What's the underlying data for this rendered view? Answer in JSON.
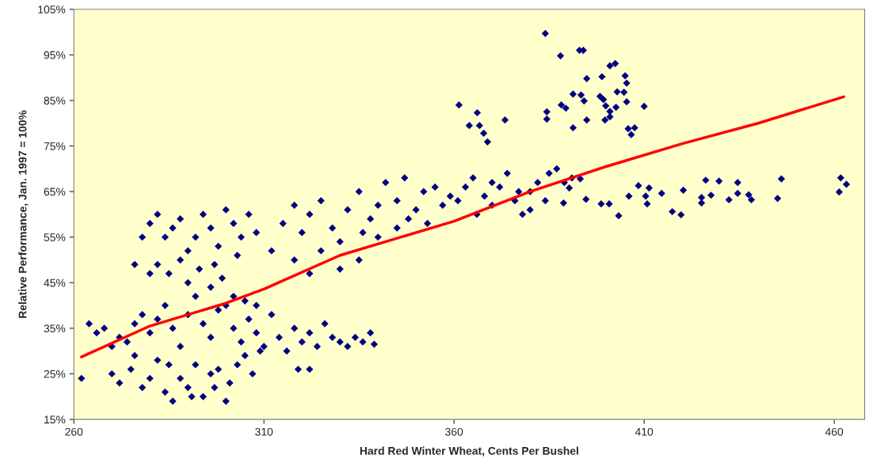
{
  "chart_data": {
    "type": "scatter",
    "xlabel": "Hard Red Winter Wheat, Cents Per Bushel",
    "ylabel": "Relative Performance, Jan. 1997 = 100%",
    "xlim": [
      260,
      468
    ],
    "xticks": [
      260,
      310,
      360,
      410,
      460
    ],
    "ylim": [
      15,
      105
    ],
    "yticks": [
      {
        "value": 15,
        "label": "15%"
      },
      {
        "value": 25,
        "label": "25%"
      },
      {
        "value": 35,
        "label": "35%"
      },
      {
        "value": 45,
        "label": "45%"
      },
      {
        "value": 55,
        "label": "55%"
      },
      {
        "value": 65,
        "label": "65%"
      },
      {
        "value": 75,
        "label": "75%"
      },
      {
        "value": 85,
        "label": "85%"
      },
      {
        "value": 95,
        "label": "95%"
      },
      {
        "value": 105,
        "label": "105%"
      }
    ],
    "grid": false,
    "legend": false,
    "series": [
      {
        "marker": "diamond",
        "color": "#000080",
        "x": [
          384,
          393,
          394,
          388,
          401,
          402.4,
          394.9,
          398.9,
          405,
          405.4,
          402.9,
          391.3,
          393.4,
          394.2,
          398.4,
          399.3,
          404.7,
          405.4,
          410,
          388.2,
          389.4,
          402.6,
          399.9,
          401,
          401,
          399.7,
          384.4,
          384.4,
          394.9,
          391.3,
          405.8,
          407.5,
          406.6,
          361.3,
          366.1,
          373.4,
          364,
          366.7,
          367.8,
          368.8,
          408.5,
          411.3,
          414.6,
          420.3,
          426.2,
          429.7,
          434.6,
          446.1,
          461.7,
          463.2,
          461.3,
          445.1,
          438.2,
          437.5,
          434.6,
          432.3,
          427.6,
          425.1,
          425.1,
          419.7,
          417.4,
          410.8,
          410.4,
          406,
          403.3,
          400.8,
          398.7,
          394.7,
          393.2,
          390.3,
          388.8,
          361,
          363,
          365,
          368,
          370,
          372,
          374,
          376,
          378,
          380,
          382,
          385,
          387,
          389,
          391,
          380,
          377,
          370,
          366,
          384,
          312,
          315,
          318,
          320,
          322,
          325,
          328,
          330,
          332,
          335,
          338,
          340,
          342,
          345,
          347,
          350,
          352,
          355,
          357,
          359,
          345,
          340,
          335,
          330,
          325,
          318,
          322,
          336,
          348,
          353,
          278,
          280,
          282,
          284,
          286,
          288,
          290,
          292,
          294,
          296,
          298,
          300,
          302,
          304,
          306,
          308,
          282,
          285,
          288,
          290,
          293,
          296,
          299,
          302,
          305,
          308,
          280,
          276,
          297,
          303,
          262,
          264,
          266,
          268,
          270,
          272,
          274,
          276,
          278,
          280,
          282,
          284,
          286,
          288,
          290,
          292,
          294,
          296,
          298,
          300,
          302,
          304,
          306,
          308,
          310,
          312,
          314,
          316,
          318,
          320,
          322,
          324,
          326,
          328,
          330,
          332,
          334,
          336,
          338,
          339,
          319,
          322,
          270,
          272,
          275,
          278,
          280,
          282,
          284,
          286,
          288,
          290,
          292,
          294,
          296,
          298,
          300,
          301,
          303,
          305,
          307,
          309,
          291,
          297,
          285,
          276
        ],
        "values": [
          99.7,
          96,
          96,
          94.8,
          92.6,
          93.1,
          89.8,
          90.2,
          90.4,
          88.8,
          86.9,
          86.4,
          86.2,
          84.9,
          85.9,
          85.2,
          86.8,
          84.7,
          83.7,
          84,
          83.3,
          83.5,
          83.8,
          82.6,
          81.4,
          80.7,
          82.5,
          80.9,
          80.7,
          79,
          78.8,
          79,
          77.5,
          84,
          82.3,
          80.7,
          79.5,
          79.5,
          77.8,
          75.9,
          66.3,
          65.8,
          64.6,
          65.3,
          67.5,
          67.3,
          67,
          67.8,
          68,
          66.6,
          64.9,
          63.5,
          63.2,
          64.3,
          64.6,
          63.2,
          64.2,
          63.7,
          62.5,
          59.9,
          60.6,
          62.3,
          64,
          64,
          59.7,
          62.3,
          62.3,
          63.3,
          67.8,
          65.8,
          62.5,
          63,
          66,
          68,
          64,
          62,
          66,
          69,
          63,
          60,
          65,
          67,
          69,
          70,
          67,
          68,
          61,
          65,
          67,
          60,
          63,
          52,
          58,
          62,
          56,
          60,
          63,
          57,
          54,
          61,
          65,
          59,
          62,
          67,
          63,
          68,
          61,
          65,
          66,
          62,
          64,
          57,
          55,
          50,
          48,
          52,
          50,
          47,
          56,
          59,
          58,
          55,
          58,
          60,
          55,
          57,
          59,
          52,
          55,
          60,
          57,
          53,
          61,
          58,
          55,
          60,
          56,
          49,
          47,
          50,
          45,
          48,
          44,
          46,
          42,
          41,
          40,
          47,
          49,
          49,
          51,
          24,
          36,
          34,
          35,
          31,
          33,
          32,
          36,
          38,
          34,
          37,
          40,
          35,
          31,
          38,
          42,
          36,
          33,
          39,
          40,
          35,
          32,
          37,
          34,
          31,
          38,
          33,
          30,
          35,
          32,
          34,
          31,
          36,
          33,
          32,
          31,
          33,
          32,
          34,
          31.5,
          26,
          26,
          25,
          23,
          26,
          22,
          24,
          28,
          21,
          19,
          24,
          22,
          27,
          20,
          25,
          26,
          19,
          23,
          27,
          29,
          25,
          30,
          20,
          22,
          27,
          29
        ]
      },
      {
        "type": "line",
        "color": "#ff0000",
        "marker": "none",
        "line_style": "solid",
        "x": [
          262,
          280,
          300,
          310,
          330,
          360,
          380,
          400,
          420,
          440,
          462.5
        ],
        "values": [
          28.7,
          35.5,
          40.5,
          43.6,
          51,
          58.5,
          65,
          70.5,
          75.5,
          80,
          85.8
        ]
      }
    ]
  }
}
